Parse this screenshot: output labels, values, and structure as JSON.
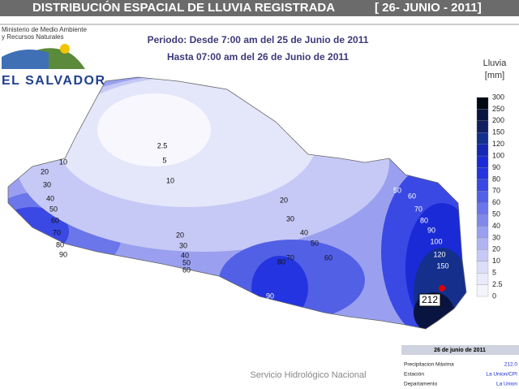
{
  "header": {
    "title": "DISTRIBUCIÓN ESPACIAL DE LLUVIA REGISTRADA",
    "date": "[ 26- JUNIO - 2011]"
  },
  "ministry": {
    "line1": "Ministerio de Medio Ambiente",
    "line2": "y Recursos Naturales",
    "country": "EL SALVADOR"
  },
  "period": {
    "line1": "Periodo: Desde 7:00 am del 25 de Junio de 2011",
    "line2": "Hasta 07:00 am del 26 de Junio de 2011"
  },
  "legend": {
    "title": "Lluvia",
    "unit": "[mm]",
    "levels": [
      300,
      250,
      200,
      150,
      120,
      100,
      90,
      80,
      70,
      60,
      50,
      40,
      30,
      20,
      10,
      5,
      2.5,
      0
    ],
    "colors": [
      "#000814",
      "#0a1440",
      "#102060",
      "#14308c",
      "#1428b4",
      "#1a2ad6",
      "#2434e0",
      "#3a48e4",
      "#5260e6",
      "#6a76ea",
      "#8088ec",
      "#9aa0ef",
      "#b0b4f2",
      "#c6c9f5",
      "#dcdef8",
      "#eaebfa",
      "#f4f5fc",
      "#ffffff"
    ]
  },
  "contour_labels": [
    10,
    2.5,
    5,
    10,
    20,
    30,
    40,
    50,
    60,
    70,
    80,
    90,
    20,
    30,
    40,
    50,
    60,
    70,
    80,
    90,
    20,
    30,
    40,
    50,
    60,
    50,
    60,
    70,
    80,
    90,
    100,
    120,
    150
  ],
  "max_label": "212",
  "footer": "Servicio Hidrológico Nacional",
  "info": {
    "date": "26 de junio de 2011",
    "rows": [
      [
        "Precipitacion Máxima",
        "212.0"
      ],
      [
        "Estación",
        "La Union/CPI"
      ],
      [
        "Departamento",
        "La Union"
      ]
    ]
  }
}
